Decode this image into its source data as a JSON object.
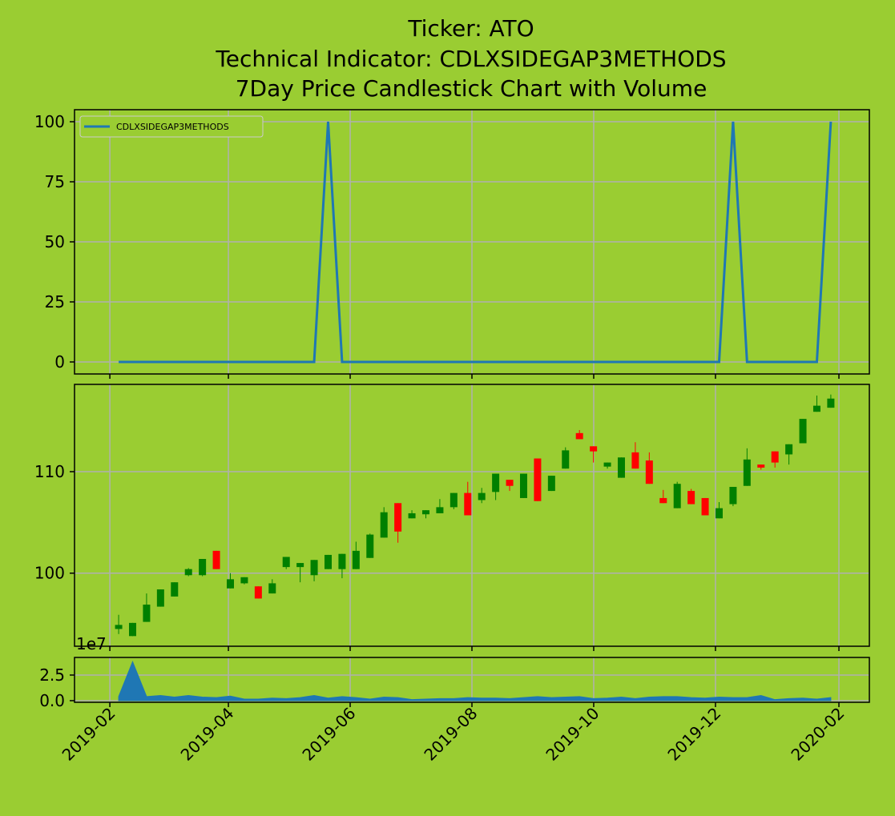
{
  "chart_data": [
    {
      "type": "line",
      "title": [
        "Ticker: ATO",
        "Technical Indicator: CDLXSIDEGAP3METHODS",
        "7Day Price Candlestick Chart with Volume"
      ],
      "series": [
        {
          "name": "CDLXSIDEGAP3METHODS",
          "color": "#1f77b4",
          "values": [
            0,
            0,
            0,
            0,
            0,
            0,
            0,
            0,
            0,
            0,
            0,
            0,
            0,
            0,
            0,
            100,
            0,
            0,
            0,
            0,
            0,
            0,
            0,
            0,
            0,
            0,
            0,
            0,
            0,
            0,
            0,
            0,
            0,
            0,
            0,
            0,
            0,
            0,
            0,
            0,
            0,
            0,
            0,
            0,
            100,
            0,
            0,
            0,
            0,
            0,
            0,
            100
          ]
        }
      ],
      "ylim": [
        -5,
        105
      ],
      "yticks": [
        0,
        25,
        50,
        75,
        100
      ],
      "grid": true,
      "legend": "upper left"
    },
    {
      "type": "candlestick",
      "open": [
        94.5,
        93.8,
        95.2,
        96.7,
        97.7,
        99.8,
        99.8,
        102.2,
        98.5,
        99.0,
        98.7,
        98.0,
        100.6,
        100.6,
        99.8,
        100.4,
        100.4,
        100.4,
        101.5,
        103.5,
        106.9,
        105.4,
        105.8,
        105.9,
        106.5,
        107.9,
        107.2,
        108.0,
        109.2,
        107.4,
        111.3,
        108.1,
        110.3,
        113.8,
        112.5,
        110.5,
        109.4,
        111.9,
        111.1,
        107.4,
        106.4,
        108.1,
        107.4,
        105.4,
        106.8,
        108.6,
        110.7,
        112.0,
        111.7,
        112.8,
        115.9,
        116.3
      ],
      "high": [
        95.9,
        95.1,
        98.0,
        98.4,
        99.1,
        100.5,
        101.4,
        102.2,
        100.0,
        99.6,
        98.7,
        99.4,
        101.6,
        101.0,
        101.3,
        101.8,
        101.9,
        103.1,
        103.9,
        106.5,
        106.9,
        106.2,
        106.2,
        107.3,
        107.9,
        109.0,
        108.4,
        109.8,
        109.2,
        109.8,
        111.3,
        109.6,
        112.4,
        114.1,
        112.5,
        110.9,
        111.4,
        112.9,
        111.9,
        108.2,
        109.0,
        108.3,
        107.4,
        107.0,
        108.5,
        112.3,
        110.7,
        112.0,
        112.7,
        115.2,
        117.5,
        117.6
      ],
      "low": [
        94.0,
        93.8,
        95.2,
        96.7,
        97.7,
        99.7,
        99.7,
        100.4,
        98.5,
        98.9,
        97.5,
        98.0,
        100.4,
        99.1,
        99.2,
        100.4,
        99.5,
        100.4,
        101.5,
        103.5,
        103.0,
        105.4,
        105.4,
        105.9,
        106.3,
        105.7,
        106.9,
        107.2,
        108.1,
        107.4,
        107.1,
        108.1,
        110.3,
        113.2,
        110.9,
        110.3,
        109.4,
        110.3,
        108.8,
        106.9,
        106.4,
        106.8,
        105.7,
        105.4,
        106.6,
        108.6,
        110.2,
        110.4,
        110.7,
        112.8,
        115.9,
        116.3
      ],
      "close": [
        94.9,
        95.1,
        96.9,
        98.4,
        99.1,
        100.4,
        101.4,
        100.4,
        99.4,
        99.6,
        97.5,
        99.0,
        101.6,
        101.0,
        101.3,
        101.8,
        101.9,
        102.2,
        103.8,
        106.0,
        104.1,
        105.9,
        106.2,
        106.5,
        107.9,
        105.7,
        107.9,
        109.8,
        108.6,
        109.8,
        107.1,
        109.6,
        112.1,
        113.2,
        112.0,
        110.9,
        111.4,
        110.3,
        108.8,
        106.9,
        108.8,
        106.8,
        105.7,
        106.4,
        108.5,
        111.2,
        110.4,
        110.9,
        112.7,
        115.2,
        116.5,
        117.2
      ],
      "up_color": "green",
      "down_color": "red",
      "ylim": [
        92.8,
        118.6
      ],
      "yticks": [
        100,
        110
      ],
      "grid": true
    },
    {
      "type": "area",
      "color": "#1f77b4",
      "offset_text": "1e7",
      "values": [
        0.4,
        3.8,
        0.4,
        0.5,
        0.35,
        0.5,
        0.35,
        0.3,
        0.45,
        0.15,
        0.15,
        0.25,
        0.2,
        0.3,
        0.5,
        0.25,
        0.4,
        0.3,
        0.15,
        0.35,
        0.3,
        0.1,
        0.15,
        0.2,
        0.2,
        0.3,
        0.25,
        0.25,
        0.2,
        0.3,
        0.4,
        0.3,
        0.35,
        0.4,
        0.2,
        0.25,
        0.35,
        0.2,
        0.35,
        0.4,
        0.4,
        0.3,
        0.25,
        0.35,
        0.3,
        0.3,
        0.5,
        0.1,
        0.2,
        0.25,
        0.15,
        0.3
      ],
      "ylim": [
        -0.16,
        4.22
      ],
      "yticks": [
        {
          "value": 0,
          "label": "0.0"
        },
        {
          "value": 2.5,
          "label": "2.5"
        }
      ],
      "xlim": [
        -3.16,
        53.76
      ],
      "xticks": [
        {
          "value": -0.63,
          "label": "2019-02"
        },
        {
          "value": 7.86,
          "label": "2019-04"
        },
        {
          "value": 16.58,
          "label": "2019-06"
        },
        {
          "value": 25.3,
          "label": "2019-08"
        },
        {
          "value": 34.02,
          "label": "2019-10"
        },
        {
          "value": 42.74,
          "label": "2019-12"
        },
        {
          "value": 51.58,
          "label": "2020-02"
        }
      ],
      "grid": true
    }
  ]
}
